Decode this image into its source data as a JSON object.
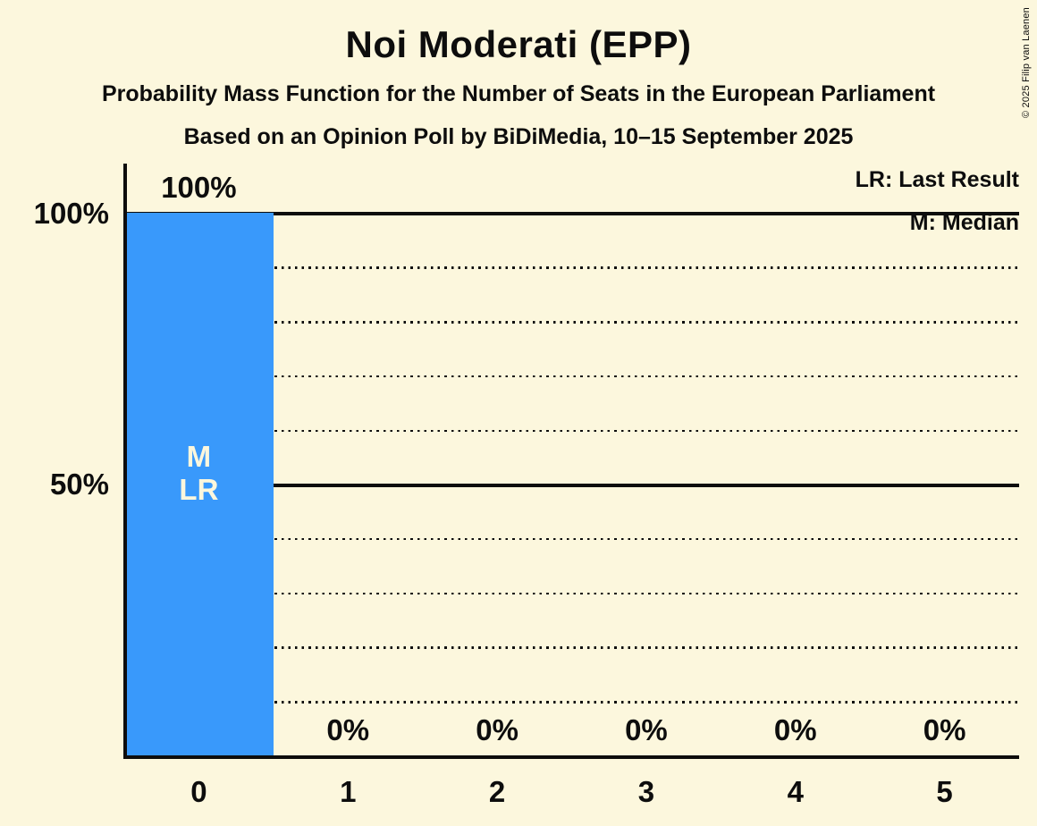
{
  "page": {
    "title": "Noi Moderati (EPP)",
    "subtitle_line1": "Probability Mass Function for the Number of Seats in the European Parliament",
    "subtitle_line2": "Based on an Opinion Poll by BiDiMedia, 10–15 September 2025",
    "copyright": "© 2025 Filip van Laenen"
  },
  "legend": {
    "last_result": "LR: Last Result",
    "median": "M: Median"
  },
  "colors": {
    "background": "#FCF7DD",
    "ink": "#0D0D0D",
    "bar": "#3999FB",
    "bar_label": "#FCF7DD"
  },
  "chart_data": {
    "type": "bar",
    "title": "Noi Moderati (EPP)",
    "xlabel": "",
    "ylabel": "",
    "categories": [
      "0",
      "1",
      "2",
      "3",
      "4",
      "5"
    ],
    "values": [
      100,
      0,
      0,
      0,
      0,
      0
    ],
    "value_labels": [
      "100%",
      "0%",
      "0%",
      "0%",
      "0%",
      "0%"
    ],
    "ylim": [
      0,
      100
    ],
    "yticks": [
      {
        "value": 100,
        "label": "100%"
      },
      {
        "value": 50,
        "label": "50%"
      }
    ],
    "gridlines": {
      "dotted_step": 10,
      "solid_values": [
        50,
        100
      ]
    },
    "bar_annotations": [
      {
        "category_index": 0,
        "lines": [
          "M",
          "LR"
        ]
      }
    ],
    "legend_position": "top-right"
  }
}
